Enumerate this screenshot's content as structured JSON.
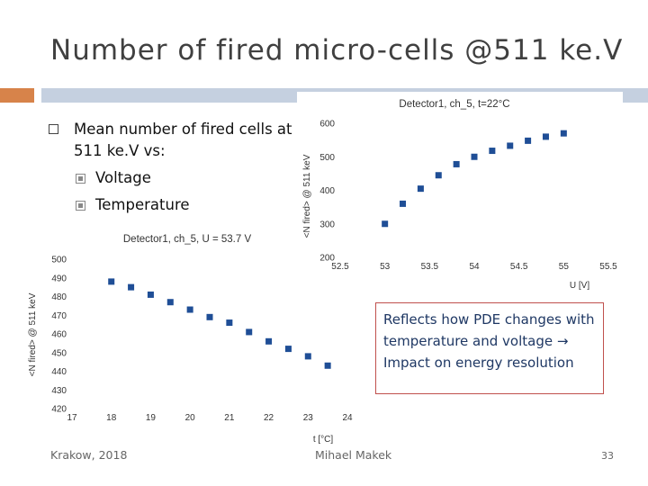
{
  "slide": {
    "title": "Number of fired micro-cells @511 ke.V",
    "bullet_main": "Mean number of fired cells at 511 ke.V vs:",
    "sub_bullets": [
      "Voltage",
      "Temperature"
    ],
    "callout": "Reflects how PDE changes with temperature and voltage → Impact on energy resolution",
    "footer_left": "Krakow, 2018",
    "footer_center": "Mihael Makek",
    "page_number": "33"
  },
  "chart_data": [
    {
      "type": "scatter",
      "title": "Detector1, ch_5, t=22°C",
      "xlabel": "U [V]",
      "ylabel": "<N fired> @ 511 keV",
      "xlim": [
        52.5,
        55.5
      ],
      "ylim": [
        200,
        600
      ],
      "xticks": [
        52.5,
        53,
        53.5,
        54,
        54.5,
        55,
        55.5
      ],
      "yticks": [
        200,
        300,
        400,
        500,
        600
      ],
      "x": [
        53.0,
        53.2,
        53.4,
        53.6,
        53.8,
        54.0,
        54.2,
        54.4,
        54.6,
        54.8,
        55.0
      ],
      "y": [
        300,
        360,
        405,
        445,
        478,
        500,
        518,
        533,
        548,
        560,
        570
      ]
    },
    {
      "type": "scatter",
      "title": "Detector1, ch_5, U = 53.7 V",
      "xlabel": "t [°C]",
      "ylabel": "<N fired> @ 511 keV",
      "xlim": [
        17,
        24
      ],
      "ylim": [
        420,
        500
      ],
      "xticks": [
        17,
        18,
        19,
        20,
        21,
        22,
        23,
        24
      ],
      "yticks": [
        420,
        430,
        440,
        450,
        460,
        470,
        480,
        490,
        500
      ],
      "x": [
        18.0,
        18.5,
        19.0,
        19.5,
        20.0,
        20.5,
        21.0,
        21.5,
        22.0,
        22.5,
        23.0,
        23.5
      ],
      "y": [
        488,
        485,
        481,
        477,
        473,
        469,
        466,
        461,
        456,
        452,
        448,
        443
      ]
    }
  ]
}
